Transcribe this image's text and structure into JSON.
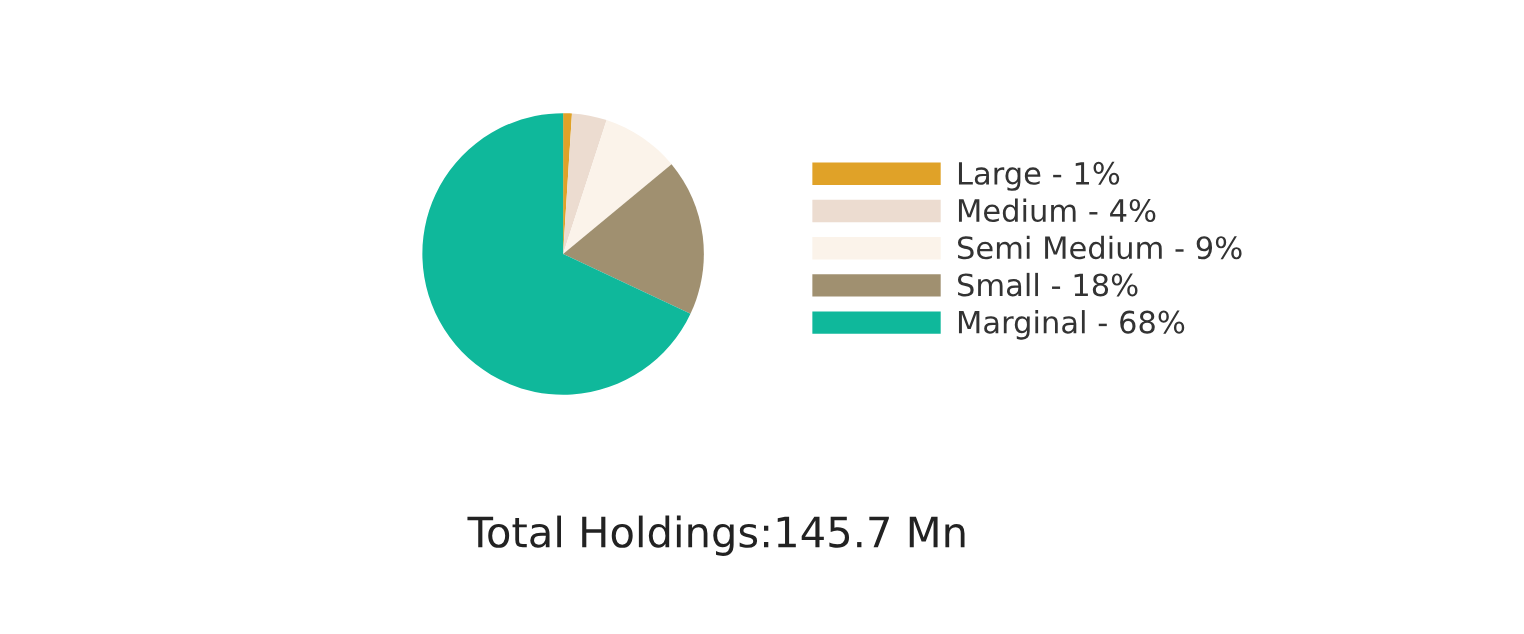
{
  "chart_data": {
    "type": "pie",
    "categories": [
      "Large - 1%",
      "Medium - 4%",
      "Semi Medium - 9%",
      "Small - 18%",
      "Marginal - 68%"
    ],
    "values": [
      1,
      4,
      9,
      18,
      68
    ],
    "colors": [
      "#e0a228",
      "#ecdcd0",
      "#fbf3ea",
      "#a09070",
      "#0fb89b"
    ],
    "legend": "right",
    "annotations": [
      "Total Holdings:145.7 Mn"
    ]
  }
}
